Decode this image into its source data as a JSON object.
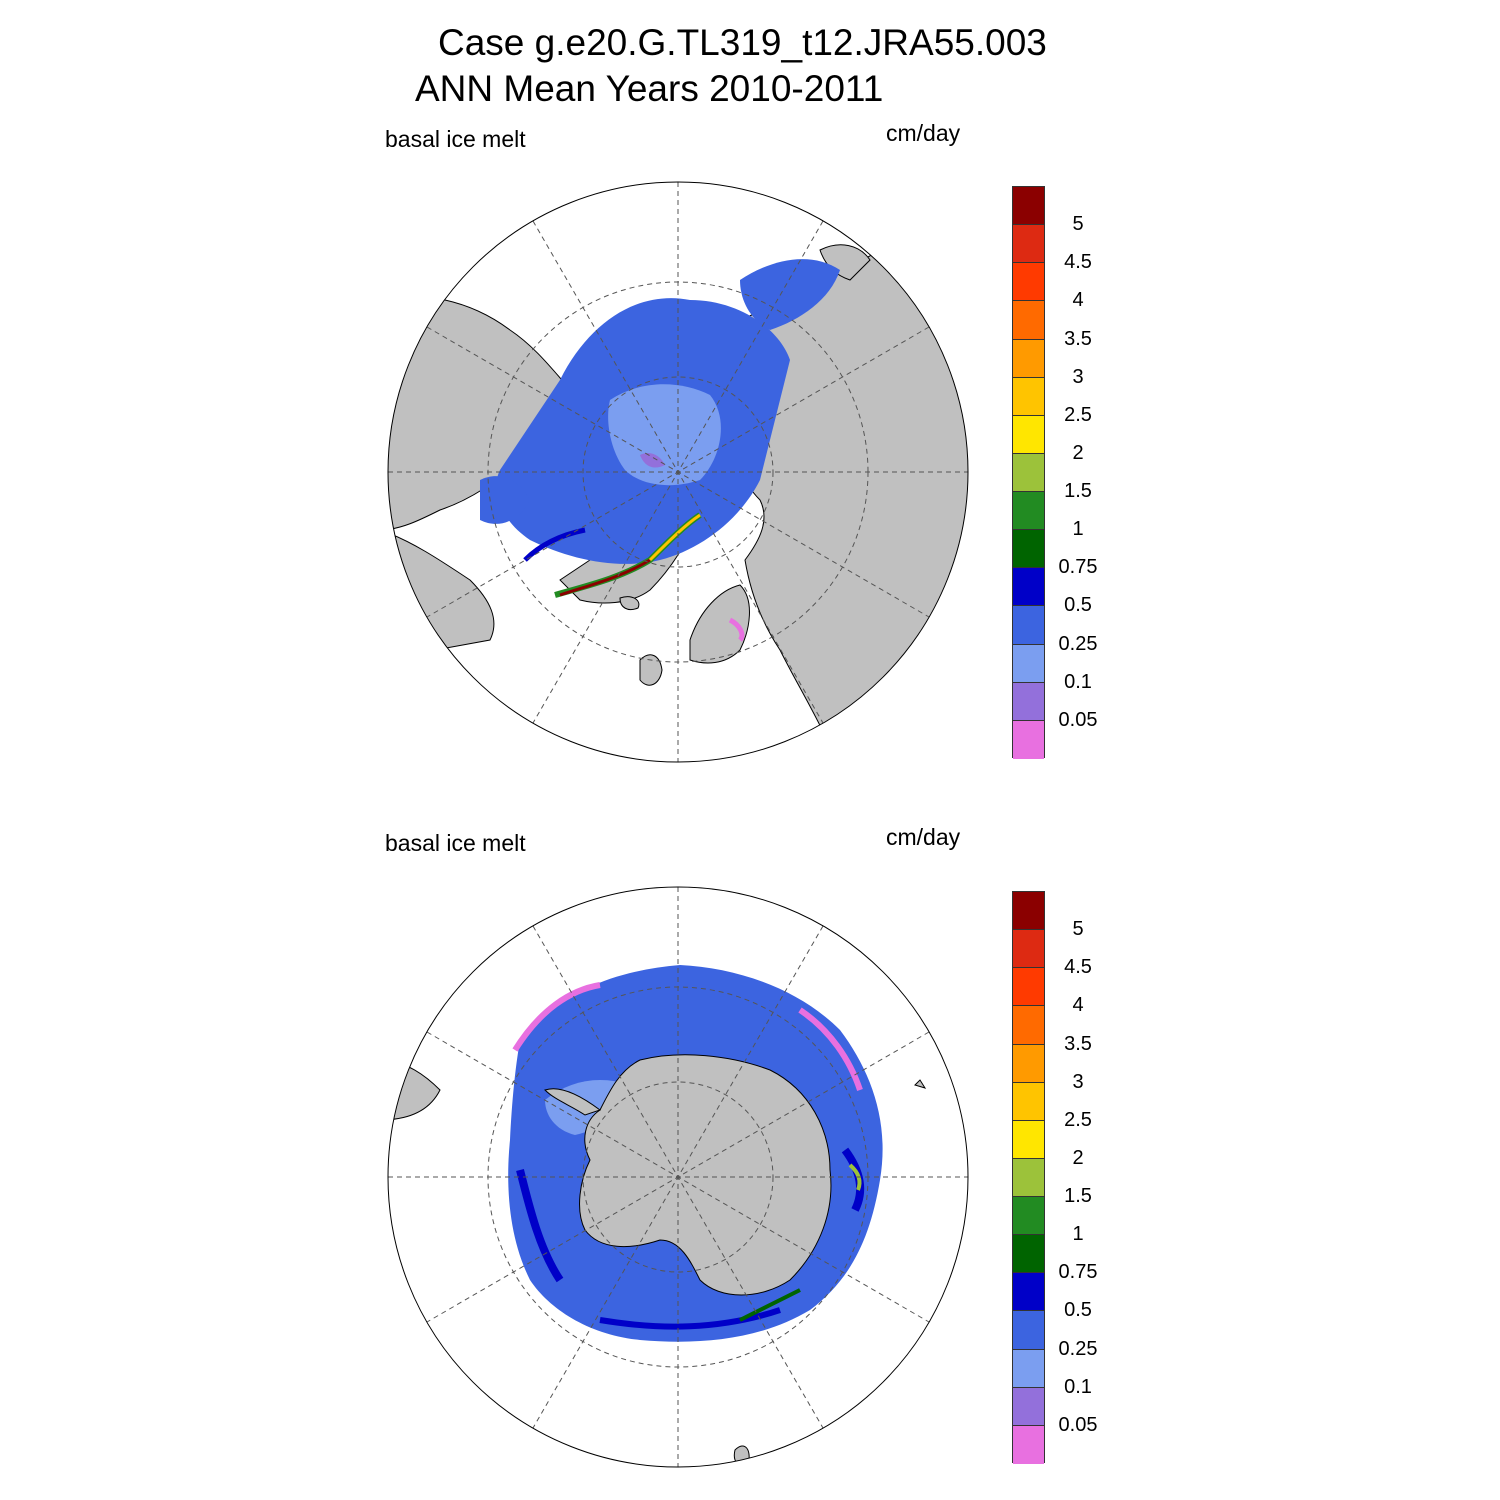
{
  "title": {
    "line1": "Case g.e20.G.TL319_t12.JRA55.003",
    "line2": "ANN Mean    Years 2010-2011"
  },
  "panels": [
    {
      "id": "north",
      "left_label": "basal ice melt",
      "right_label": "cm/day",
      "hemisphere": "Northern Hemisphere polar stereographic"
    },
    {
      "id": "south",
      "left_label": "basal ice melt",
      "right_label": "cm/day",
      "hemisphere": "Southern Hemisphere polar stereographic"
    }
  ],
  "colorbar": {
    "ticks": [
      "5",
      "4.5",
      "4",
      "3.5",
      "3",
      "2.5",
      "2",
      "1.5",
      "1",
      "0.75",
      "0.5",
      "0.25",
      "0.1",
      "0.05"
    ],
    "colors_top_to_bottom": [
      "#8b0000",
      "#dd2a12",
      "#ff3a00",
      "#ff6a00",
      "#ff9a00",
      "#ffc400",
      "#ffe600",
      "#9cc23a",
      "#228b22",
      "#006400",
      "#0000c8",
      "#3c64e0",
      "#7b9ef0",
      "#9370db",
      "#e870e0"
    ]
  },
  "colors": {
    "land": "#c0c0c0",
    "ocean": "#ffffff",
    "grid": "#555555"
  }
}
